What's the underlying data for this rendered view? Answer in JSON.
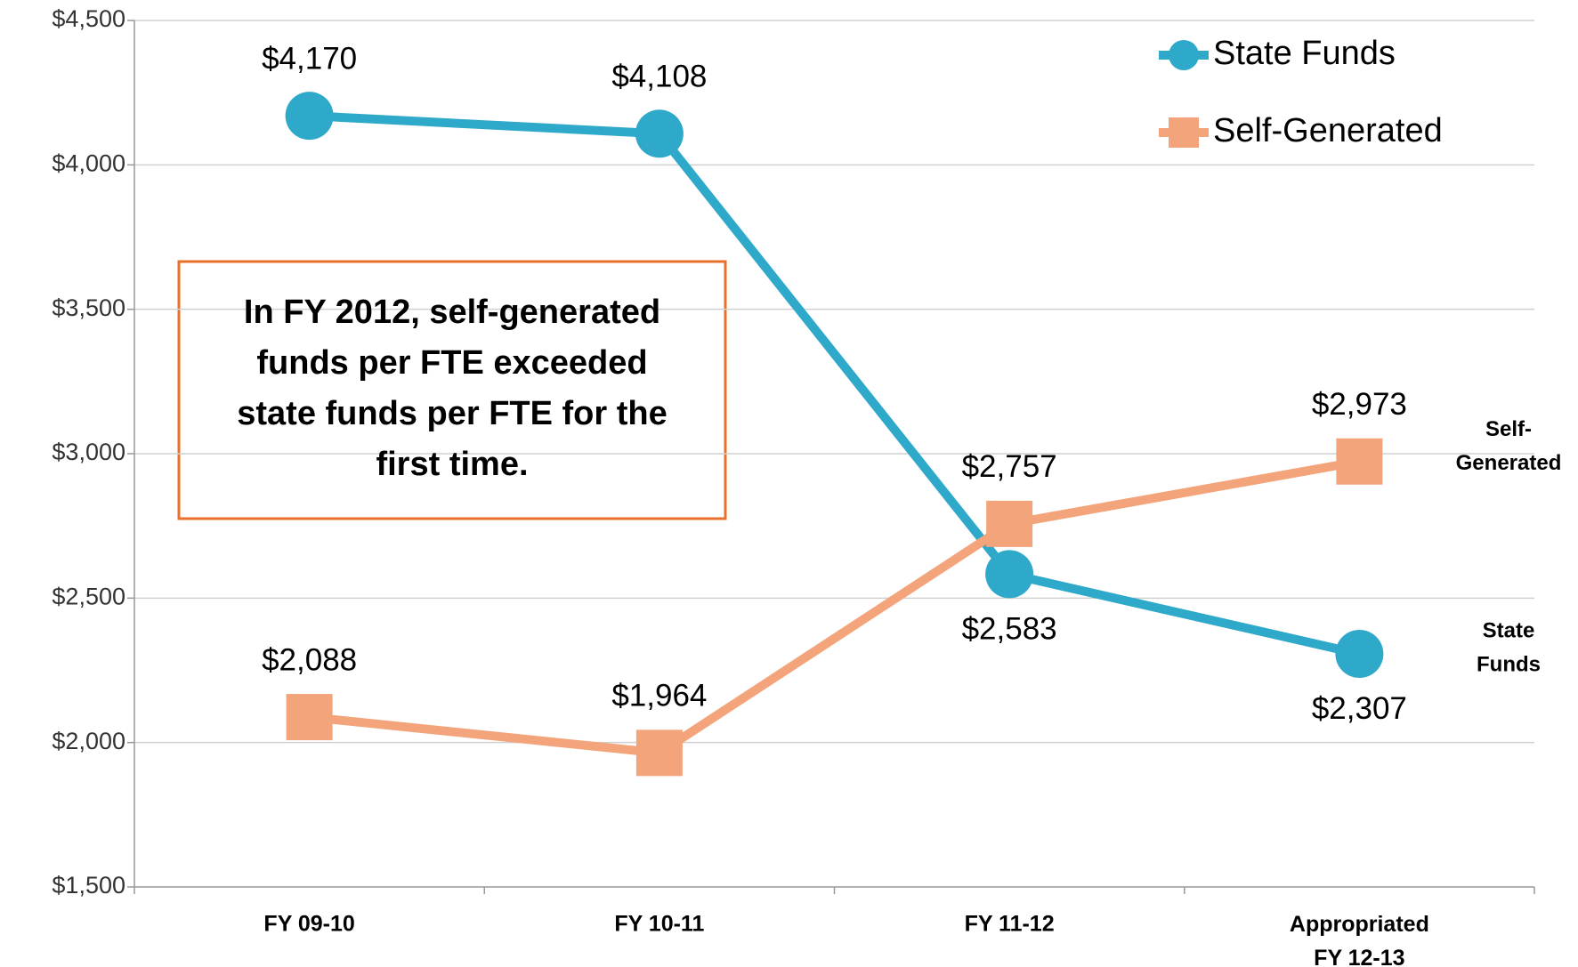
{
  "chart_data": {
    "type": "line",
    "categories": [
      "FY 09-10",
      "FY 10-11",
      "FY 11-12",
      "Appropriated FY 12-13"
    ],
    "series": [
      {
        "name": "State Funds",
        "color": "#2fa9c9",
        "marker": "circle",
        "values": [
          4170,
          4108,
          2583,
          2307
        ],
        "value_labels": [
          "$4,170",
          "$4,108",
          "$2,583",
          "$2,307"
        ],
        "end_label": [
          "State",
          "Funds"
        ]
      },
      {
        "name": "Self-Generated",
        "color": "#f4a47a",
        "marker": "square",
        "values": [
          2088,
          1964,
          2757,
          2973
        ],
        "value_labels": [
          "$2,088",
          "$1,964",
          "$2,757",
          "$2,973"
        ],
        "end_label": [
          "Self-",
          "Generated"
        ]
      }
    ],
    "ylim": [
      1500,
      4500
    ],
    "yticks": [
      {
        "value": 1500,
        "label": "$1,500"
      },
      {
        "value": 2000,
        "label": "$2,000"
      },
      {
        "value": 2500,
        "label": "$2,500"
      },
      {
        "value": 3000,
        "label": "$3,000"
      },
      {
        "value": 3500,
        "label": "$3,500"
      },
      {
        "value": 4000,
        "label": "$4,000"
      },
      {
        "value": 4500,
        "label": "$4,500"
      }
    ],
    "grid": true,
    "legend": "upper right",
    "annotation": [
      "In FY 2012, self-generated",
      "funds per FTE exceeded",
      "state funds per FTE for the",
      "first time."
    ]
  }
}
